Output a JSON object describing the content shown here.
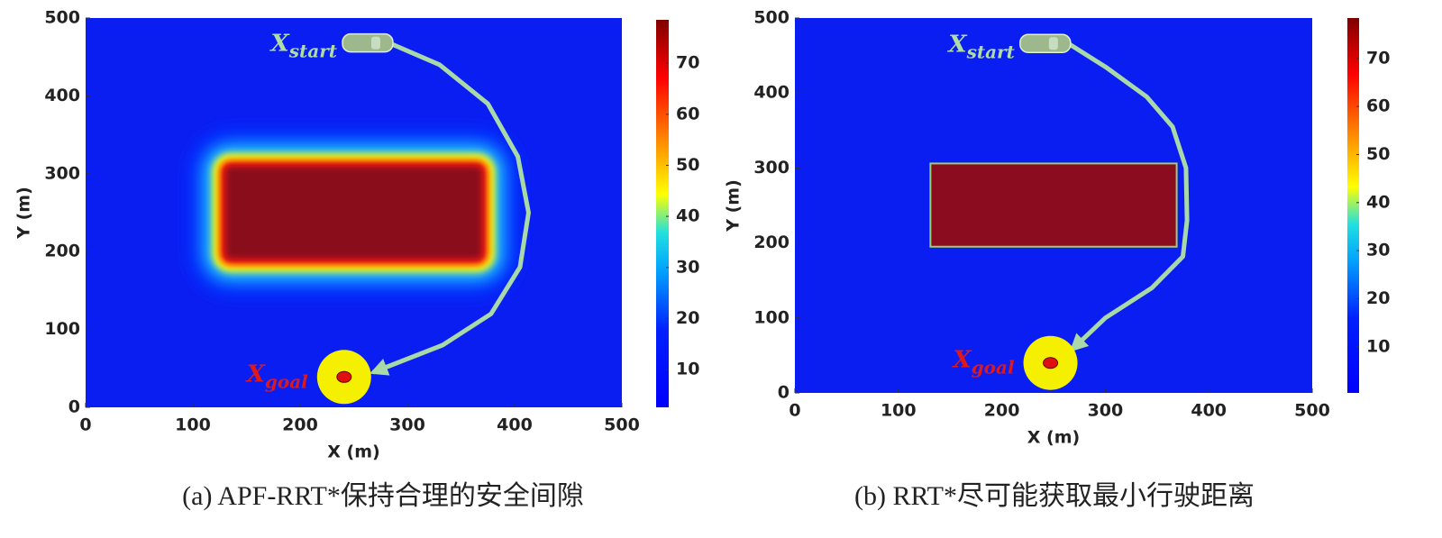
{
  "chart_data": [
    {
      "type": "heatmap",
      "caption": "(a) APF-RRT*保持合理的安全间隙",
      "xlabel": "X (m)",
      "ylabel": "Y (m)",
      "xlim": [
        0,
        500
      ],
      "ylim": [
        0,
        500
      ],
      "xticks": [
        0,
        100,
        200,
        300,
        400,
        500
      ],
      "yticks": [
        0,
        100,
        200,
        300,
        400,
        500
      ],
      "clim": [
        2.6,
        78.5
      ],
      "cticks": [
        10,
        20,
        30,
        40,
        50,
        60,
        70
      ],
      "background_color": "#0a1ef2",
      "obstacle_color": "#8a0c1e",
      "halo": true,
      "obstacle": {
        "x": [
          130,
          370
        ],
        "y": [
          190,
          310
        ]
      },
      "start": {
        "x": 263,
        "y": 468
      },
      "goal": {
        "x": 241,
        "y": 39
      },
      "start_label": {
        "main": "X",
        "sub": "start"
      },
      "goal_label": {
        "main": "X",
        "sub": "goal"
      },
      "path": {
        "color": "#a9d9a9",
        "x": [
          283,
          330,
          375,
          403,
          413,
          405,
          378,
          333,
          268
        ],
        "y": [
          468,
          440,
          390,
          322,
          250,
          180,
          120,
          80,
          45
        ]
      }
    },
    {
      "type": "heatmap",
      "caption": "(b) RRT*尽可能获取最小行驶距离",
      "xlabel": "X (m)",
      "ylabel": "Y (m)",
      "xlim": [
        0,
        500
      ],
      "ylim": [
        0,
        500
      ],
      "xticks": [
        0,
        100,
        200,
        300,
        400,
        500
      ],
      "yticks": [
        0,
        100,
        200,
        300,
        400,
        500
      ],
      "clim": [
        0.4,
        78.4
      ],
      "cticks": [
        10,
        20,
        30,
        40,
        50,
        60,
        70
      ],
      "background_color": "#0a1ef2",
      "obstacle_color": "#8a0c1e",
      "halo": false,
      "obstacle": {
        "x": [
          131,
          369
        ],
        "y": [
          195,
          306
        ]
      },
      "start": {
        "x": 242,
        "y": 466
      },
      "goal": {
        "x": 247,
        "y": 40
      },
      "start_label": {
        "main": "X",
        "sub": "start"
      },
      "goal_label": {
        "main": "X",
        "sub": "goal"
      },
      "path": {
        "color": "#a9d9a9",
        "x": [
          262,
          300,
          340,
          365,
          378,
          379,
          375,
          345,
          300,
          268
        ],
        "y": [
          468,
          435,
          395,
          355,
          300,
          230,
          182,
          140,
          100,
          58
        ]
      }
    }
  ]
}
